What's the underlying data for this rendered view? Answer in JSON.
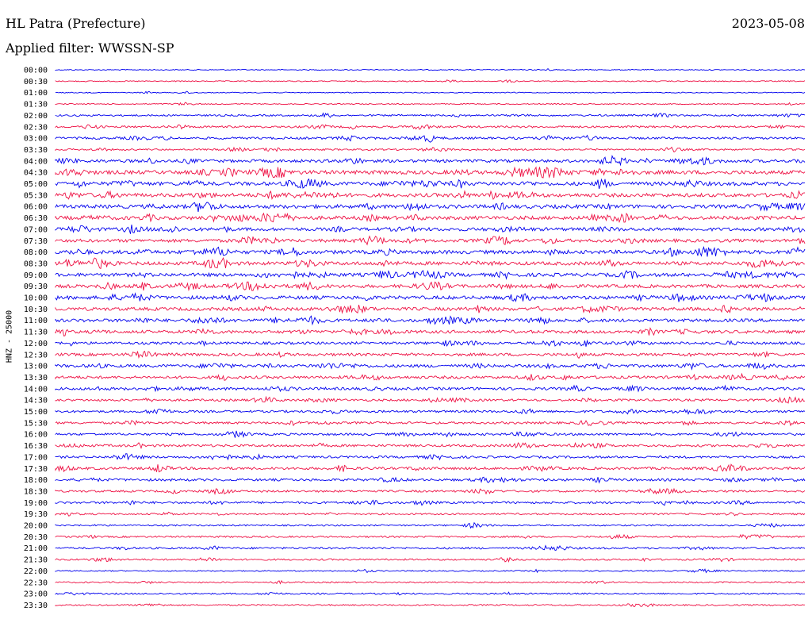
{
  "header": {
    "station": "HL Patra (Prefecture)",
    "date": "2023-05-08",
    "filter": "Applied filter: WWSSN-SP"
  },
  "chart_data": {
    "type": "line",
    "title": "HL Patra (Prefecture)",
    "subtitle": "Applied filter: WWSSN-SP",
    "ylabel": "HNZ - 25000",
    "colors": [
      "#0000ee",
      "#ee1144"
    ],
    "rows": [
      {
        "label": "00:00",
        "activity": 0.05
      },
      {
        "label": "00:30",
        "activity": 0.12
      },
      {
        "label": "01:00",
        "activity": 0.08
      },
      {
        "label": "01:30",
        "activity": 0.12
      },
      {
        "label": "02:00",
        "activity": 0.3
      },
      {
        "label": "02:30",
        "activity": 0.4
      },
      {
        "label": "03:00",
        "activity": 0.45
      },
      {
        "label": "03:30",
        "activity": 0.3
      },
      {
        "label": "04:00",
        "activity": 0.65
      },
      {
        "label": "04:30",
        "activity": 0.9
      },
      {
        "label": "05:00",
        "activity": 0.85
      },
      {
        "label": "05:30",
        "activity": 0.85
      },
      {
        "label": "06:00",
        "activity": 0.85
      },
      {
        "label": "06:30",
        "activity": 0.85
      },
      {
        "label": "07:00",
        "activity": 0.75
      },
      {
        "label": "07:30",
        "activity": 0.7
      },
      {
        "label": "08:00",
        "activity": 0.85
      },
      {
        "label": "08:30",
        "activity": 0.8
      },
      {
        "label": "09:00",
        "activity": 0.8
      },
      {
        "label": "09:30",
        "activity": 0.75
      },
      {
        "label": "10:00",
        "activity": 0.8
      },
      {
        "label": "10:30",
        "activity": 0.75
      },
      {
        "label": "11:00",
        "activity": 0.7
      },
      {
        "label": "11:30",
        "activity": 0.7
      },
      {
        "label": "12:00",
        "activity": 0.55
      },
      {
        "label": "12:30",
        "activity": 0.6
      },
      {
        "label": "13:00",
        "activity": 0.65
      },
      {
        "label": "13:30",
        "activity": 0.6
      },
      {
        "label": "14:00",
        "activity": 0.6
      },
      {
        "label": "14:30",
        "activity": 0.45
      },
      {
        "label": "15:00",
        "activity": 0.45
      },
      {
        "label": "15:30",
        "activity": 0.45
      },
      {
        "label": "16:00",
        "activity": 0.45
      },
      {
        "label": "16:30",
        "activity": 0.5
      },
      {
        "label": "17:00",
        "activity": 0.45
      },
      {
        "label": "17:30",
        "activity": 0.55
      },
      {
        "label": "18:00",
        "activity": 0.5
      },
      {
        "label": "18:30",
        "activity": 0.4
      },
      {
        "label": "19:00",
        "activity": 0.45
      },
      {
        "label": "19:30",
        "activity": 0.3
      },
      {
        "label": "20:00",
        "activity": 0.25
      },
      {
        "label": "20:30",
        "activity": 0.3
      },
      {
        "label": "21:00",
        "activity": 0.35
      },
      {
        "label": "21:30",
        "activity": 0.3
      },
      {
        "label": "22:00",
        "activity": 0.15
      },
      {
        "label": "22:30",
        "activity": 0.2
      },
      {
        "label": "23:00",
        "activity": 0.25
      },
      {
        "label": "23:30",
        "activity": 0.2
      }
    ]
  }
}
